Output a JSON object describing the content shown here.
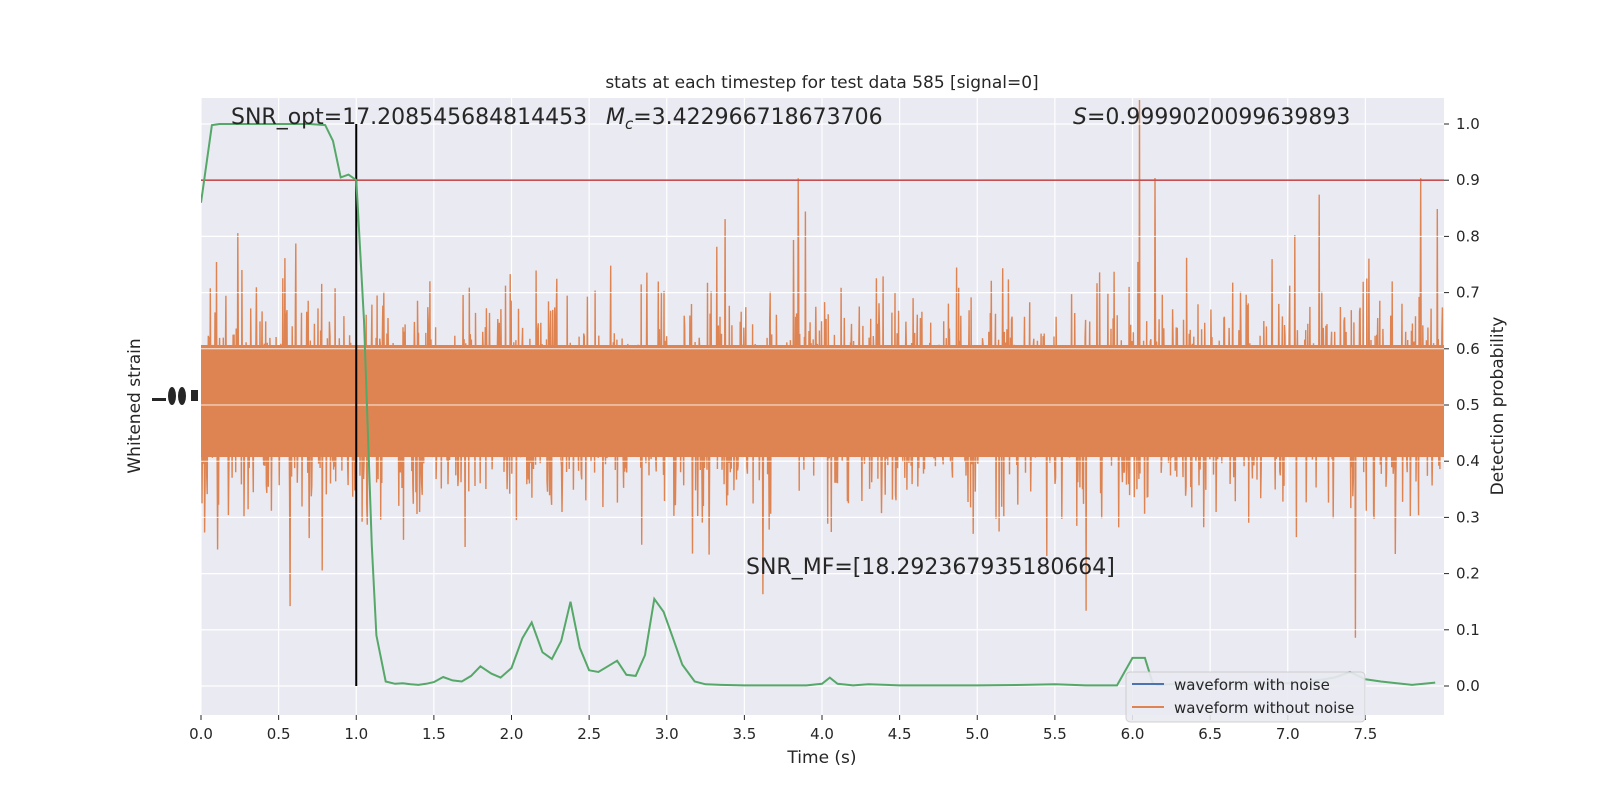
{
  "chart_data": {
    "type": "line",
    "title": "stats at each timestep for test data 585 [signal=0]",
    "xlabel": "Time (s)",
    "ylabel_left": "Whitened strain",
    "ylabel_right": "Detection probability",
    "xlim": [
      0.0,
      8.0
    ],
    "ylim_right": [
      -0.05,
      1.05
    ],
    "x_ticks": [
      "0.0",
      "0.5",
      "1.0",
      "1.5",
      "2.0",
      "2.5",
      "3.0",
      "3.5",
      "4.0",
      "4.5",
      "5.0",
      "5.5",
      "6.0",
      "6.5",
      "7.0",
      "7.5"
    ],
    "y_right_ticks": [
      "0.0",
      "0.1",
      "0.2",
      "0.3",
      "0.4",
      "0.5",
      "0.6",
      "0.7",
      "0.8",
      "0.9",
      "1.0"
    ],
    "annotations": {
      "snr_opt": "SNR_opt=17.208545684814453",
      "mc_symbol": "M",
      "mc_subscript": "c",
      "mc_value": "=3.422966718673706",
      "s_symbol": "S",
      "s_value": "=0.9999020099639893",
      "snr_mf": "SNR_MF=[18.292367935180664]"
    },
    "threshold": 0.9,
    "event_time": 1.0,
    "legend": [
      "waveform with noise",
      "waveform without noise"
    ],
    "legend_position": "lower-right",
    "grid": true,
    "colors": {
      "background": "#eaeaf2",
      "grid": "#ffffff",
      "noise_strain": "#dd8452",
      "clean_waveform": "#4c72b0",
      "probability": "#55a868",
      "threshold": "#c44e52",
      "event_line": "#000000"
    },
    "probability_series": {
      "name": "Detection probability",
      "x": [
        0.0,
        0.07,
        0.12,
        0.2,
        0.3,
        0.4,
        0.5,
        0.6,
        0.7,
        0.8,
        0.85,
        0.9,
        0.95,
        1.0,
        1.05,
        1.1,
        1.13,
        1.19,
        1.25,
        1.3,
        1.35,
        1.4,
        1.45,
        1.5,
        1.56,
        1.62,
        1.68,
        1.74,
        1.8,
        1.87,
        1.93,
        2.0,
        2.07,
        2.13,
        2.2,
        2.26,
        2.32,
        2.38,
        2.44,
        2.5,
        2.56,
        2.62,
        2.68,
        2.74,
        2.8,
        2.86,
        2.92,
        2.98,
        3.04,
        3.1,
        3.18,
        3.25,
        3.35,
        3.5,
        3.7,
        3.9,
        4.0,
        4.05,
        4.1,
        4.2,
        4.3,
        4.5,
        4.8,
        5.0,
        5.3,
        5.5,
        5.7,
        5.9,
        6.0,
        6.05,
        6.08,
        6.13,
        6.16,
        6.3,
        6.5,
        6.8,
        7.1,
        7.3,
        7.4,
        7.5,
        7.6,
        7.8,
        7.95
      ],
      "values": [
        0.86,
        0.998,
        1.0,
        1.0,
        1.0,
        1.0,
        1.0,
        1.0,
        1.0,
        0.998,
        0.97,
        0.905,
        0.91,
        0.9,
        0.65,
        0.25,
        0.09,
        0.008,
        0.004,
        0.005,
        0.003,
        0.002,
        0.004,
        0.007,
        0.016,
        0.01,
        0.008,
        0.018,
        0.035,
        0.022,
        0.015,
        0.032,
        0.085,
        0.113,
        0.06,
        0.048,
        0.08,
        0.15,
        0.068,
        0.028,
        0.025,
        0.035,
        0.045,
        0.02,
        0.018,
        0.055,
        0.155,
        0.132,
        0.085,
        0.038,
        0.008,
        0.003,
        0.002,
        0.001,
        0.001,
        0.001,
        0.004,
        0.015,
        0.004,
        0.001,
        0.003,
        0.001,
        0.001,
        0.001,
        0.002,
        0.003,
        0.001,
        0.001,
        0.05,
        0.05,
        0.05,
        0.005,
        0.002,
        0.004,
        0.002,
        0.003,
        0.006,
        0.015,
        0.025,
        0.012,
        0.008,
        0.002,
        0.006
      ]
    }
  }
}
